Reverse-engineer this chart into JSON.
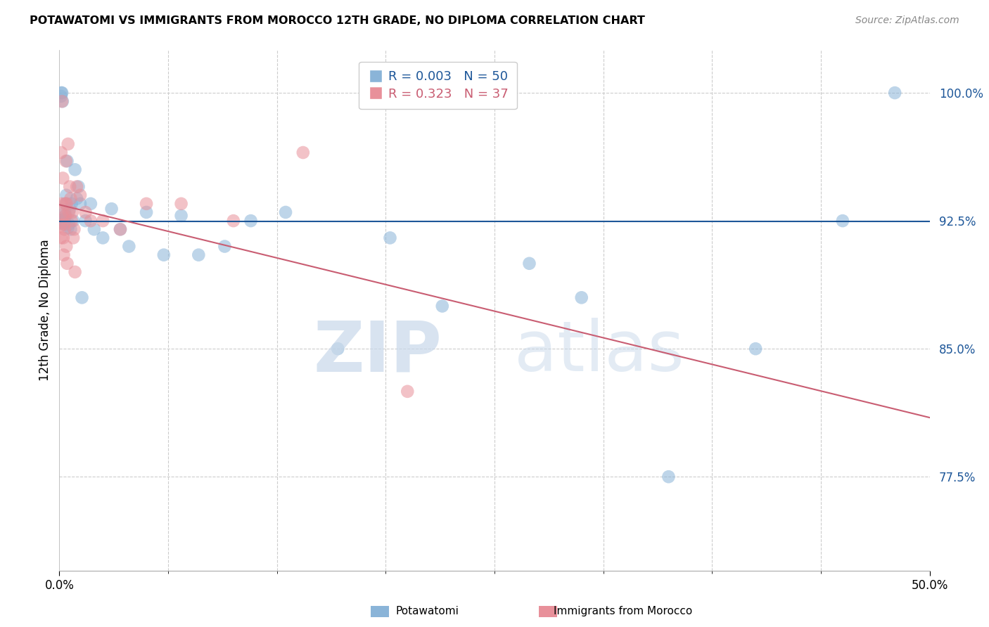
{
  "title": "POTAWATOMI VS IMMIGRANTS FROM MOROCCO 12TH GRADE, NO DIPLOMA CORRELATION CHART",
  "source": "Source: ZipAtlas.com",
  "ylabel": "12th Grade, No Diploma",
  "legend_label1": "Potawatomi",
  "legend_label2": "Immigrants from Morocco",
  "R1": 0.003,
  "N1": 50,
  "R2": 0.323,
  "N2": 37,
  "blue_color": "#8ab4d8",
  "pink_color": "#e8909a",
  "blue_line_color": "#1e5799",
  "pink_line_color": "#c95d72",
  "xlim": [
    0.0,
    50.0
  ],
  "ylim": [
    72.0,
    102.5
  ],
  "yticks": [
    77.5,
    85.0,
    92.5,
    100.0
  ],
  "ytick_labels": [
    "77.5%",
    "85.0%",
    "92.5%",
    "100.0%"
  ],
  "blue_x": [
    0.05,
    0.08,
    0.1,
    0.12,
    0.15,
    0.18,
    0.2,
    0.22,
    0.25,
    0.28,
    0.3,
    0.32,
    0.35,
    0.38,
    0.4,
    0.45,
    0.5,
    0.55,
    0.6,
    0.65,
    0.7,
    0.8,
    0.9,
    1.0,
    1.1,
    1.2,
    1.5,
    1.8,
    2.0,
    2.5,
    3.0,
    3.5,
    4.0,
    5.0,
    6.0,
    7.0,
    8.0,
    9.5,
    11.0,
    13.0,
    16.0,
    19.0,
    22.0,
    27.0,
    30.0,
    35.0,
    40.0,
    45.0,
    48.0,
    1.3
  ],
  "blue_y": [
    92.5,
    92.4,
    99.8,
    100.0,
    100.0,
    99.5,
    92.3,
    92.4,
    92.6,
    92.5,
    92.5,
    93.0,
    92.8,
    93.5,
    94.0,
    96.0,
    92.1,
    92.3,
    93.2,
    92.0,
    93.5,
    92.5,
    95.5,
    93.8,
    94.5,
    93.5,
    92.5,
    93.5,
    92.0,
    91.5,
    93.2,
    92.0,
    91.0,
    93.0,
    90.5,
    92.8,
    90.5,
    91.0,
    92.5,
    93.0,
    85.0,
    91.5,
    87.5,
    90.0,
    88.0,
    77.5,
    85.0,
    92.5,
    100.0,
    88.0
  ],
  "pink_x": [
    0.05,
    0.08,
    0.1,
    0.12,
    0.15,
    0.18,
    0.2,
    0.22,
    0.25,
    0.28,
    0.3,
    0.33,
    0.35,
    0.38,
    0.4,
    0.42,
    0.45,
    0.5,
    0.55,
    0.6,
    0.65,
    0.7,
    0.75,
    0.8,
    0.85,
    0.9,
    1.0,
    1.2,
    1.5,
    1.8,
    2.5,
    3.5,
    5.0,
    7.0,
    10.0,
    14.0,
    20.0
  ],
  "pink_y": [
    92.2,
    91.5,
    96.5,
    93.5,
    99.5,
    92.8,
    95.0,
    91.5,
    90.5,
    92.3,
    92.0,
    93.5,
    92.8,
    96.0,
    91.0,
    93.5,
    90.0,
    97.0,
    93.0,
    94.5,
    93.8,
    92.5,
    93.0,
    91.5,
    92.0,
    89.5,
    94.5,
    94.0,
    93.0,
    92.5,
    92.5,
    92.0,
    93.5,
    93.5,
    92.5,
    96.5,
    82.5
  ]
}
